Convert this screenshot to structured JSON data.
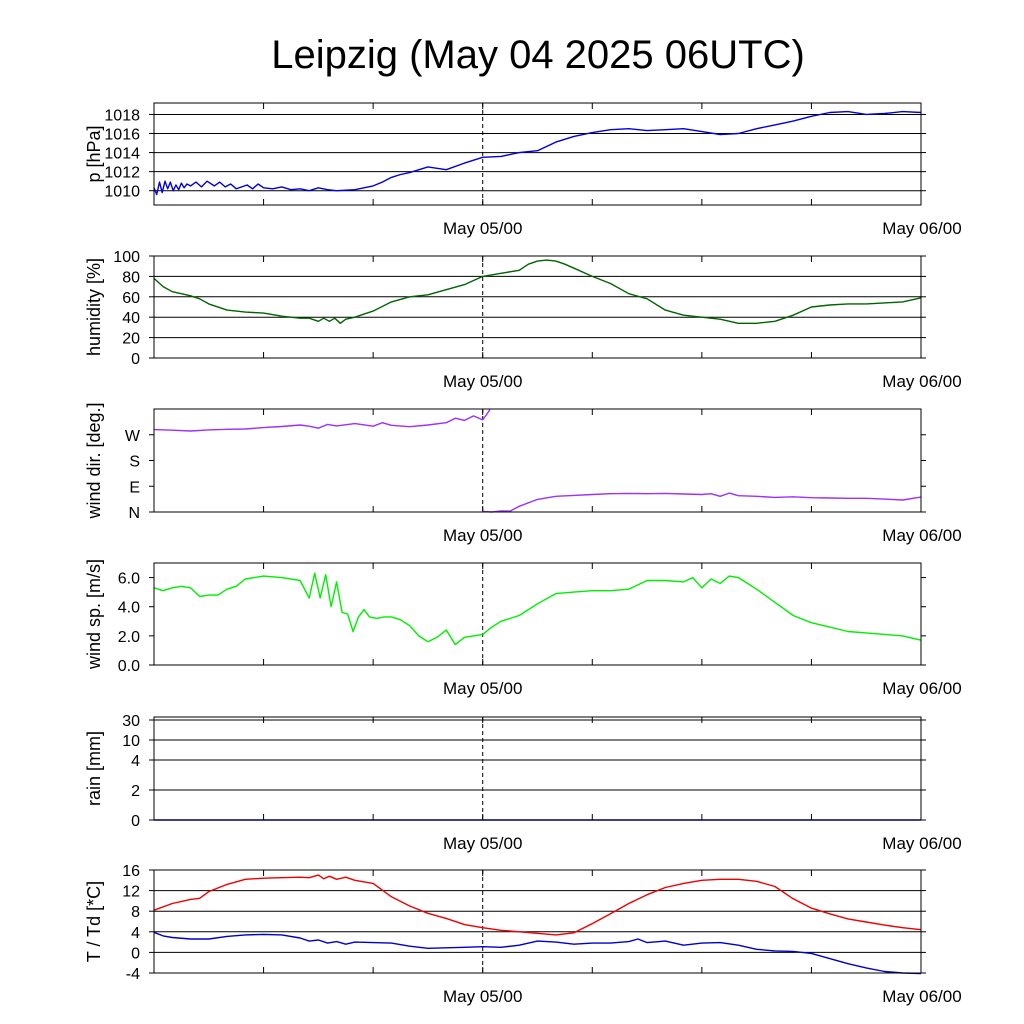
{
  "title": "Leipzig (May 04 2025 06UTC)",
  "chart_data": [
    {
      "type": "line",
      "ylabel": "p [hPa]",
      "x_ticks": [
        "May 05/00",
        "May 06/00"
      ],
      "x_range_hours": [
        0,
        42
      ],
      "ylim": [
        1008.5,
        1019.2
      ],
      "y_ticks": [
        1010,
        1012,
        1014,
        1016,
        1018
      ],
      "y_tick_labels": [
        "1010",
        "1012",
        "1014",
        "1016",
        "1018"
      ],
      "grid": true,
      "series": [
        {
          "color": "#0000dd",
          "x": [
            0,
            0.15,
            0.3,
            0.45,
            0.6,
            0.75,
            0.9,
            1.05,
            1.2,
            1.35,
            1.5,
            1.65,
            1.8,
            2,
            2.3,
            2.6,
            2.9,
            3.3,
            3.6,
            3.9,
            4.2,
            4.5,
            4.8,
            5.1,
            5.4,
            5.7,
            6,
            6.5,
            7,
            7.5,
            8,
            8.5,
            9,
            9.5,
            10,
            11,
            12,
            12.5,
            13,
            13.5,
            14,
            15,
            16,
            17,
            18,
            19,
            20,
            21,
            22,
            23,
            24,
            25,
            26,
            27,
            28,
            29,
            30,
            31,
            32,
            33,
            34,
            35,
            36,
            37,
            38,
            39,
            40,
            41,
            42
          ],
          "values": [
            1010.3,
            1009.6,
            1010.9,
            1009.8,
            1011.0,
            1010.2,
            1010.9,
            1010.0,
            1010.6,
            1010.1,
            1010.8,
            1010.3,
            1010.7,
            1010.5,
            1010.9,
            1010.4,
            1011.0,
            1010.5,
            1010.9,
            1010.4,
            1010.7,
            1010.2,
            1010.4,
            1010.6,
            1010.2,
            1010.7,
            1010.3,
            1010.2,
            1010.4,
            1010.1,
            1010.2,
            1010.0,
            1010.3,
            1010.1,
            1010.0,
            1010.1,
            1010.5,
            1010.9,
            1011.4,
            1011.7,
            1011.9,
            1012.5,
            1012.2,
            1012.9,
            1013.5,
            1013.6,
            1014.0,
            1014.2,
            1015.1,
            1015.7,
            1016.1,
            1016.4,
            1016.5,
            1016.3,
            1016.4,
            1016.5,
            1016.2,
            1015.9,
            1016.0,
            1016.5,
            1016.9,
            1017.3,
            1017.8,
            1018.2,
            1018.3,
            1018.0,
            1018.1,
            1018.3,
            1018.2
          ]
        }
      ]
    },
    {
      "type": "line",
      "ylabel": "humidity [%]",
      "x_ticks": [
        "May 05/00",
        "May 06/00"
      ],
      "x_range_hours": [
        0,
        42
      ],
      "ylim": [
        0,
        100
      ],
      "y_ticks": [
        0,
        20,
        40,
        60,
        80,
        100
      ],
      "y_tick_labels": [
        "0",
        "20",
        "40",
        "60",
        "80",
        "100"
      ],
      "grid": true,
      "series": [
        {
          "color": "#006400",
          "x": [
            0,
            0.5,
            1,
            1.5,
            2,
            2.5,
            3,
            4,
            5,
            6,
            7,
            8,
            8.5,
            9,
            9.3,
            9.6,
            9.9,
            10.2,
            10.5,
            11,
            11.5,
            12,
            13,
            14,
            15,
            16,
            17,
            17.5,
            18,
            19,
            20,
            20.5,
            21,
            21.5,
            22,
            22.5,
            23,
            24,
            25,
            26,
            27,
            28,
            29,
            30,
            31,
            32,
            33,
            34,
            35,
            36,
            37,
            38,
            39,
            40,
            41,
            42
          ],
          "values": [
            78,
            70,
            65,
            63,
            61,
            58,
            53,
            47,
            45,
            44,
            41,
            39,
            39,
            36,
            39,
            36,
            39,
            34,
            38,
            40,
            43,
            46,
            55,
            60,
            62,
            67,
            72,
            76,
            80,
            83,
            86,
            92,
            95,
            96,
            95,
            92,
            88,
            80,
            73,
            63,
            58,
            47,
            42,
            40,
            38,
            34,
            34,
            36,
            42,
            50,
            52,
            53,
            53,
            54,
            55,
            59
          ]
        }
      ]
    },
    {
      "type": "line",
      "ylabel": "wind dir. [deg.]",
      "x_ticks": [
        "May 05/00",
        "May 06/00"
      ],
      "x_range_hours": [
        0,
        42
      ],
      "ylim": [
        0,
        360
      ],
      "y_ticks": [
        0,
        90,
        180,
        270
      ],
      "y_tick_labels": [
        "N",
        "E",
        "S",
        "W"
      ],
      "grid": false,
      "series": [
        {
          "color": "#9b30ff",
          "x": [
            0,
            1,
            2,
            3,
            4,
            5,
            6,
            7,
            8,
            8.5,
            9,
            9.5,
            10,
            11,
            12,
            12.5,
            13,
            14,
            15,
            16,
            16.5,
            17,
            17.5,
            18,
            18.4
          ],
          "values": [
            288,
            286,
            283,
            287,
            289,
            290,
            295,
            299,
            304,
            300,
            293,
            306,
            301,
            309,
            300,
            312,
            303,
            298,
            304,
            312,
            328,
            320,
            336,
            322,
            358
          ]
        },
        {
          "color": "#9b30ff",
          "x": [
            18,
            18.5,
            19,
            19.5,
            20,
            21,
            22,
            23,
            24,
            25,
            26,
            27,
            28,
            29,
            30,
            30.5,
            31,
            31.5,
            32,
            33,
            34,
            35,
            36,
            37,
            38,
            39,
            40,
            41,
            42
          ],
          "values": [
            2,
            0,
            4,
            3,
            20,
            44,
            55,
            58,
            61,
            64,
            65,
            64,
            65,
            63,
            61,
            64,
            55,
            66,
            57,
            55,
            51,
            53,
            50,
            49,
            48,
            48,
            45,
            42,
            52
          ]
        }
      ]
    },
    {
      "type": "line",
      "ylabel": "wind sp. [m/s]",
      "x_ticks": [
        "May 05/00",
        "May 06/00"
      ],
      "x_range_hours": [
        0,
        42
      ],
      "ylim": [
        0,
        7
      ],
      "y_ticks": [
        0,
        2,
        4,
        6
      ],
      "y_tick_labels": [
        "0.0",
        "2.0",
        "4.0",
        "6.0"
      ],
      "grid": false,
      "series": [
        {
          "color": "#00ee00",
          "x": [
            0,
            0.5,
            1,
            1.5,
            2,
            2.5,
            3,
            3.5,
            4,
            4.5,
            5,
            5.5,
            6,
            7,
            8,
            8.5,
            8.8,
            9.1,
            9.4,
            9.7,
            10,
            10.3,
            10.6,
            10.9,
            11.2,
            11.5,
            11.8,
            12.2,
            12.6,
            13,
            13.5,
            14,
            14.5,
            15,
            15.5,
            16,
            16.5,
            17,
            17.5,
            18,
            18.5,
            19,
            20,
            21,
            22,
            23,
            24,
            25,
            26,
            27,
            28,
            29,
            29.5,
            30,
            30.5,
            31,
            31.5,
            32,
            32.5,
            33,
            34,
            35,
            36,
            37,
            38,
            39,
            40,
            41,
            42
          ],
          "values": [
            5.3,
            5.1,
            5.3,
            5.4,
            5.3,
            4.7,
            4.8,
            4.8,
            5.2,
            5.4,
            5.9,
            6.0,
            6.1,
            6.0,
            5.8,
            4.6,
            6.3,
            4.6,
            6.2,
            4.0,
            5.7,
            3.6,
            3.5,
            2.3,
            3.3,
            3.8,
            3.3,
            3.2,
            3.3,
            3.3,
            3.1,
            2.7,
            2.0,
            1.6,
            1.9,
            2.4,
            1.4,
            1.9,
            2.0,
            2.1,
            2.6,
            3.0,
            3.4,
            4.2,
            4.9,
            5.0,
            5.1,
            5.1,
            5.2,
            5.8,
            5.8,
            5.7,
            6.0,
            5.3,
            5.9,
            5.6,
            6.1,
            6.0,
            5.6,
            5.2,
            4.3,
            3.4,
            2.9,
            2.6,
            2.3,
            2.2,
            2.1,
            2.0,
            1.7
          ]
        }
      ]
    },
    {
      "type": "line",
      "ylabel": "rain [mm]",
      "x_ticks": [
        "May 05/00",
        "May 06/00"
      ],
      "x_range_hours": [
        0,
        42
      ],
      "y_scale": "nonlinear",
      "y_ticks": [
        0,
        2,
        4,
        10,
        30
      ],
      "y_tick_labels": [
        "0",
        "2",
        "4",
        "10",
        "30"
      ],
      "grid": true,
      "series": [
        {
          "color": "#0000ff",
          "x": [
            0,
            42
          ],
          "values": [
            0,
            0
          ]
        }
      ]
    },
    {
      "type": "line",
      "ylabel": "T / Td [*C]",
      "x_ticks": [
        "May 05/00",
        "May 06/00"
      ],
      "x_range_hours": [
        0,
        42
      ],
      "ylim": [
        -4,
        16
      ],
      "y_ticks": [
        -4,
        0,
        4,
        8,
        12,
        16
      ],
      "y_tick_labels": [
        "-4",
        "0",
        "4",
        "8",
        "12",
        "16"
      ],
      "grid": true,
      "series": [
        {
          "color": "#ee0000",
          "x": [
            0,
            1,
            2,
            2.5,
            3,
            4,
            5,
            6,
            7,
            8,
            8.5,
            9,
            9.3,
            9.6,
            10,
            10.5,
            11,
            12,
            13,
            14,
            15,
            16,
            17,
            18,
            19,
            20,
            21,
            22,
            23,
            24,
            25,
            26,
            27,
            28,
            29,
            30,
            31,
            32,
            33,
            34,
            35,
            36,
            37,
            38,
            39,
            40,
            41,
            42
          ],
          "values": [
            8.2,
            9.5,
            10.3,
            10.5,
            11.8,
            13.2,
            14.2,
            14.4,
            14.5,
            14.6,
            14.5,
            15.0,
            14.3,
            14.8,
            14.2,
            14.6,
            14.0,
            13.4,
            10.8,
            9.0,
            7.6,
            6.6,
            5.4,
            4.8,
            4.3,
            4.0,
            3.7,
            3.4,
            3.8,
            5.6,
            7.5,
            9.5,
            11.2,
            12.6,
            13.4,
            14.0,
            14.2,
            14.2,
            13.8,
            12.8,
            10.4,
            8.6,
            7.5,
            6.5,
            5.9,
            5.3,
            4.8,
            4.4
          ]
        },
        {
          "color": "#0000cc",
          "x": [
            0,
            0.5,
            1,
            2,
            3,
            4,
            5,
            6,
            7,
            8,
            8.5,
            9,
            9.5,
            10,
            10.5,
            11,
            12,
            13,
            14,
            15,
            16,
            17,
            18,
            19,
            20,
            21,
            22,
            23,
            24,
            25,
            26,
            26.5,
            27,
            28,
            29,
            30,
            31,
            32,
            33,
            34,
            35,
            36,
            37,
            38,
            39,
            40,
            41,
            42
          ],
          "values": [
            3.9,
            3.2,
            2.9,
            2.6,
            2.6,
            3.1,
            3.4,
            3.5,
            3.4,
            2.8,
            2.2,
            2.4,
            1.8,
            2.1,
            1.6,
            2.0,
            1.9,
            1.8,
            1.2,
            0.8,
            0.9,
            1.0,
            1.1,
            1.0,
            1.4,
            2.2,
            2.0,
            1.6,
            1.8,
            1.8,
            2.1,
            2.6,
            1.9,
            2.2,
            1.4,
            1.8,
            1.9,
            1.4,
            0.6,
            0.3,
            0.2,
            -0.2,
            -1.2,
            -2.2,
            -3.0,
            -3.7,
            -4.0,
            -4.1
          ]
        }
      ]
    }
  ]
}
